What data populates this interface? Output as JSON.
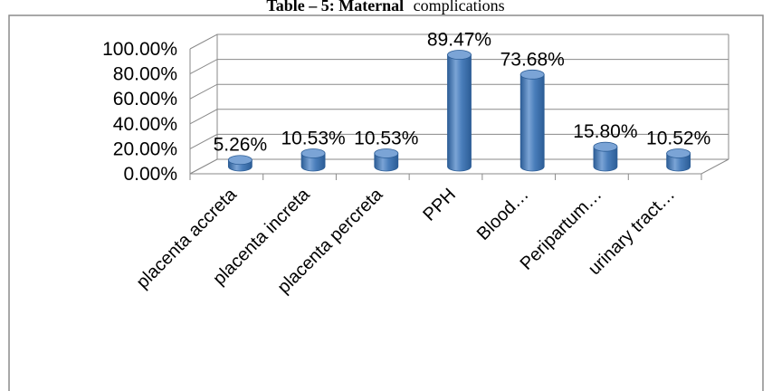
{
  "caption": {
    "bold": "Table – 5: Maternal",
    "normal": "complications"
  },
  "chart_data": {
    "type": "bar",
    "categories": [
      "placenta accreta",
      "placenta increta",
      "placenta percreta",
      "PPH",
      "Blood…",
      "Peripartum…",
      "urinary tract…"
    ],
    "values": [
      5.26,
      10.53,
      10.53,
      89.47,
      73.68,
      15.8,
      10.52
    ],
    "data_labels": [
      "5.26%",
      "10.53%",
      "10.53%",
      "89.47%",
      "73.68%",
      "15.80%",
      "10.52%"
    ],
    "y_ticks": [
      "0.00%",
      "20.00%",
      "40.00%",
      "60.00%",
      "80.00%",
      "100.00%"
    ],
    "ylim": [
      0,
      100
    ],
    "title": "",
    "xlabel": "",
    "ylabel": "",
    "grid": true,
    "bar_color": "#4a7ebb",
    "bar_dark": "#2c5d96",
    "bar_top": "#7ba4d6"
  }
}
